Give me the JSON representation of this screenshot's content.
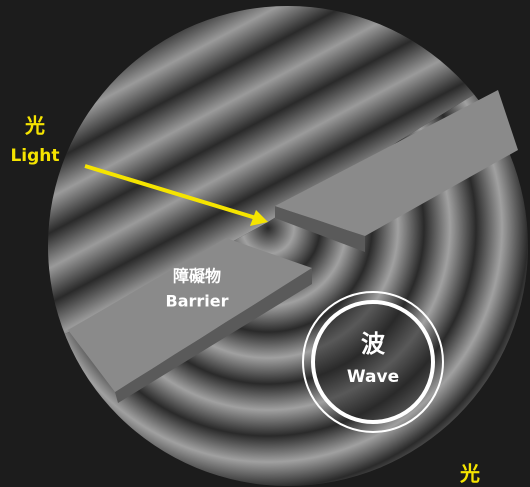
{
  "light": {
    "zh": "光",
    "en": "Light"
  },
  "barrier": {
    "zh": "障礙物",
    "en": "Barrier"
  },
  "wave": {
    "zh": "波",
    "en": "Wave"
  },
  "corner_label": "光"
}
